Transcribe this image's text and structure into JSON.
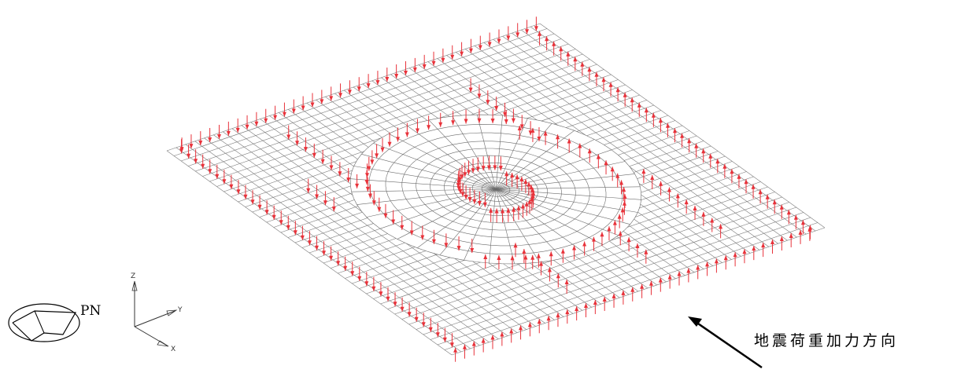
{
  "view_label": "PN",
  "axes": {
    "z": "Z",
    "y": "Y",
    "x": "X"
  },
  "caption": "地震荷重加力方向",
  "colors": {
    "mesh": "#7a7a7a",
    "load_arrow": "#e8323a",
    "ink": "#000000"
  },
  "icons": {
    "view_orientation": "view-orientation-icon",
    "load_direction": "load-direction-arrow-icon"
  }
}
